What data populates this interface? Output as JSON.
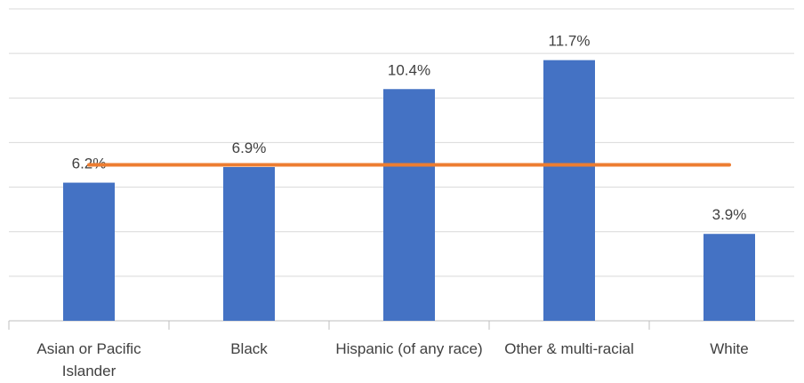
{
  "chart_data": {
    "type": "bar",
    "categories": [
      "Asian or Pacific Islander",
      "Black",
      "Hispanic (of any race)",
      "Other & multi-racial",
      "White"
    ],
    "values": [
      6.2,
      6.9,
      10.4,
      11.7,
      3.9
    ],
    "value_labels": [
      "6.2%",
      "6.9%",
      "10.4%",
      "11.7%",
      "3.9%"
    ],
    "color": "#4472c4",
    "line_values": [
      7.0,
      7.0,
      7.0,
      7.0,
      7.0
    ],
    "line_color": "#ed7d31",
    "ylim": [
      0,
      14
    ],
    "yticks": [
      0,
      2,
      4,
      6,
      8,
      10,
      12,
      14
    ],
    "grid": true
  }
}
